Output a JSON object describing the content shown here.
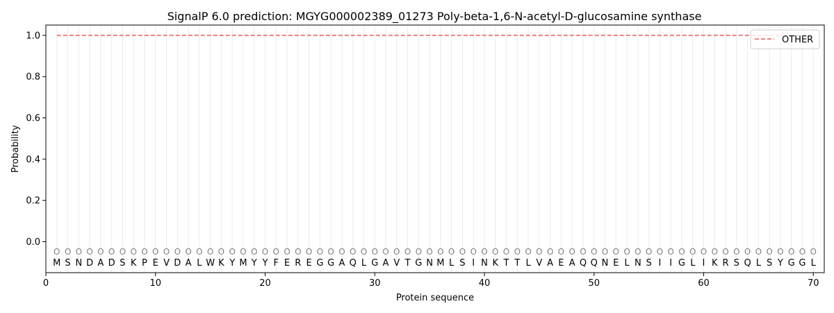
{
  "chart_data": {
    "type": "line",
    "title": "SignalP 6.0 prediction: MGYG000002389_01273 Poly-beta-1,6-N-acetyl-D-glucosamine synthase",
    "xlabel": "Protein sequence",
    "ylabel": "Probability",
    "xlim": [
      0,
      71
    ],
    "ylim": [
      -0.15,
      1.05
    ],
    "x_ticks": [
      0,
      10,
      20,
      30,
      40,
      50,
      60,
      70
    ],
    "y_ticks": [
      0.0,
      0.2,
      0.4,
      0.6,
      0.8,
      1.0
    ],
    "x_tick_labels": [
      "0",
      "10",
      "20",
      "30",
      "40",
      "50",
      "60",
      "70"
    ],
    "y_tick_labels": [
      "0.0",
      "0.2",
      "0.4",
      "0.6",
      "0.8",
      "1.0"
    ],
    "grid": "vertical lines at each residue",
    "legend_position": "top-right",
    "sequence": [
      "M",
      "S",
      "N",
      "D",
      "A",
      "D",
      "S",
      "K",
      "P",
      "E",
      "V",
      "D",
      "A",
      "L",
      "W",
      "K",
      "Y",
      "M",
      "Y",
      "Y",
      "F",
      "E",
      "R",
      "E",
      "G",
      "G",
      "A",
      "Q",
      "L",
      "G",
      "A",
      "V",
      "T",
      "G",
      "N",
      "M",
      "L",
      "S",
      "I",
      "N",
      "K",
      "T",
      "T",
      "L",
      "V",
      "A",
      "E",
      "A",
      "Q",
      "Q",
      "N",
      "E",
      "L",
      "N",
      "S",
      "I",
      "I",
      "G",
      "L",
      "I",
      "K",
      "R",
      "S",
      "Q",
      "L",
      "S",
      "Y",
      "G",
      "G",
      "L"
    ],
    "state_labels": [
      "O",
      "O",
      "O",
      "O",
      "O",
      "O",
      "O",
      "O",
      "O",
      "O",
      "O",
      "O",
      "O",
      "O",
      "O",
      "O",
      "O",
      "O",
      "O",
      "O",
      "O",
      "O",
      "O",
      "O",
      "O",
      "O",
      "O",
      "O",
      "O",
      "O",
      "O",
      "O",
      "O",
      "O",
      "O",
      "O",
      "O",
      "O",
      "O",
      "O",
      "O",
      "O",
      "O",
      "O",
      "O",
      "O",
      "O",
      "O",
      "O",
      "O",
      "O",
      "O",
      "O",
      "O",
      "O",
      "O",
      "O",
      "O",
      "O",
      "O",
      "O",
      "O",
      "O",
      "O",
      "O",
      "O",
      "O",
      "O",
      "O",
      "O"
    ],
    "series": [
      {
        "name": "OTHER",
        "color": "#f08080",
        "style": "dashed",
        "x_start": 1,
        "x_end": 70,
        "value": 1.0
      }
    ]
  }
}
